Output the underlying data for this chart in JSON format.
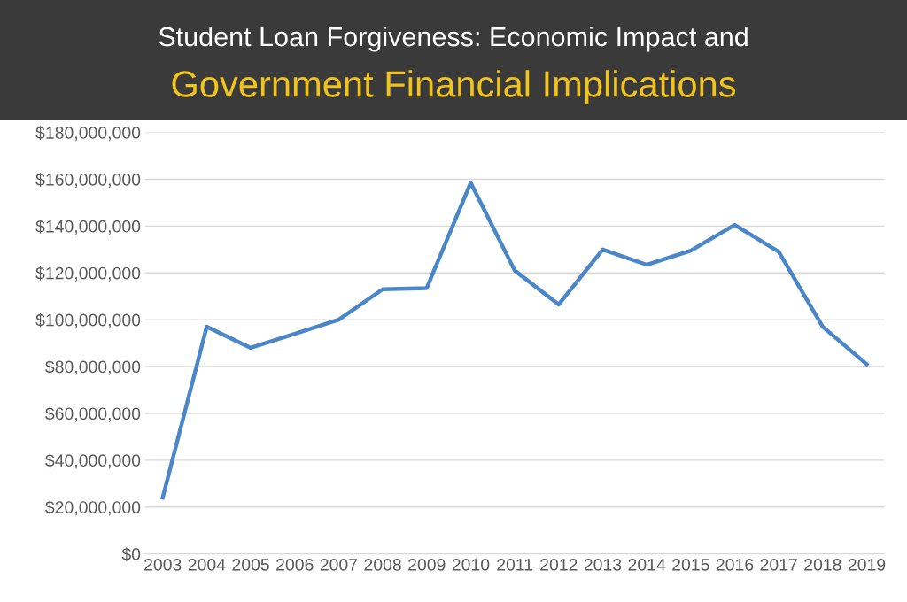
{
  "chart_data": {
    "type": "line",
    "title": "Student Loan Forgiveness: Economic Impact and",
    "subtitle": "Government Financial Implications",
    "categories": [
      "2003",
      "2004",
      "2005",
      "2006",
      "2007",
      "2008",
      "2009",
      "2010",
      "2011",
      "2012",
      "2013",
      "2014",
      "2015",
      "2016",
      "2017",
      "2018",
      "2019"
    ],
    "series": [
      {
        "color": "#4a86c8",
        "values": [
          24000000,
          97000000,
          88000000,
          94000000,
          100000000,
          113000000,
          113500000,
          158500000,
          121000000,
          106500000,
          130000000,
          123500000,
          129500000,
          140500000,
          129000000,
          97000000,
          81000000
        ]
      }
    ],
    "ylim": [
      0,
      180000000
    ],
    "yticks": [
      {
        "value": 0,
        "label": "$0"
      },
      {
        "value": 20000000,
        "label": "$20,000,000"
      },
      {
        "value": 40000000,
        "label": "$40,000,000"
      },
      {
        "value": 60000000,
        "label": "$60,000,000"
      },
      {
        "value": 80000000,
        "label": "$80,000,000"
      },
      {
        "value": 100000000,
        "label": "$100,000,000"
      },
      {
        "value": 120000000,
        "label": "$120,000,000"
      },
      {
        "value": 140000000,
        "label": "$140,000,000"
      },
      {
        "value": 160000000,
        "label": "$160,000,000"
      },
      {
        "value": 180000000,
        "label": "$180,000,000"
      }
    ],
    "grid": "y",
    "marker": "none",
    "line_style": "solid"
  }
}
